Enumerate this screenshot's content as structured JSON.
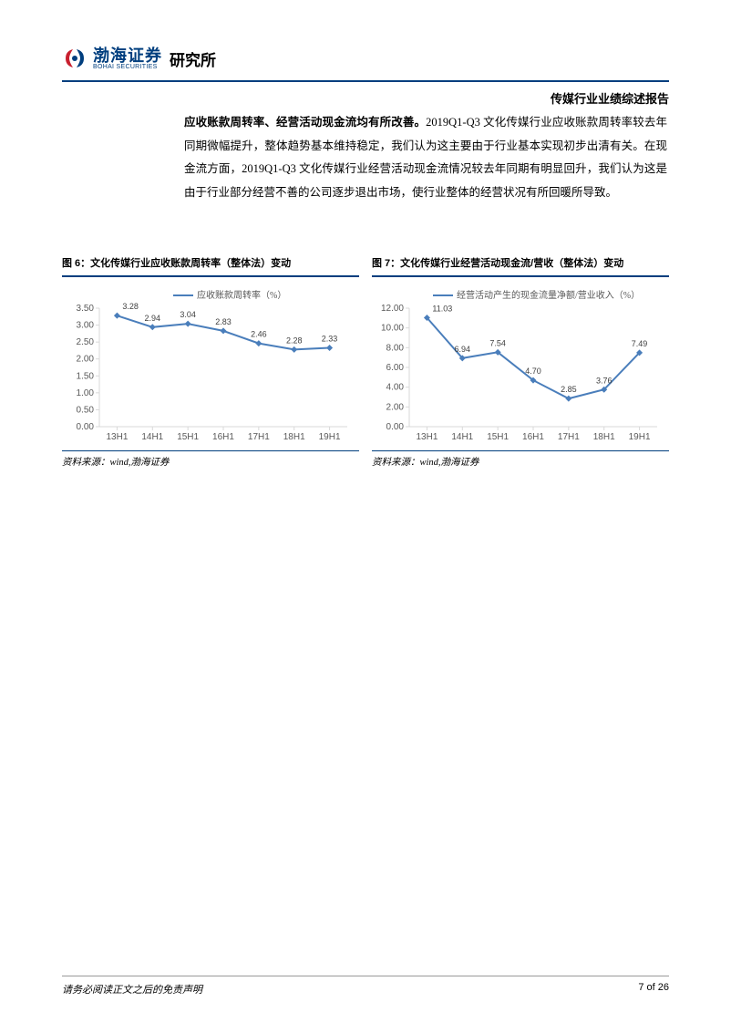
{
  "header": {
    "logo_cn": "渤海证券",
    "logo_en": "BOHAI SECURITIES",
    "institute": "研究所",
    "logo_red": "#c8202f",
    "logo_blue": "#003e7e"
  },
  "report_title": "传媒行业业绩综述报告",
  "body": {
    "bold_lead": "应收账款周转率、经营活动现金流均有所改善。",
    "rest": "2019Q1-Q3 文化传媒行业应收账款周转率较去年同期微幅提升，整体趋势基本维持稳定，我们认为这主要由于行业基本实现初步出清有关。在现金流方面，2019Q1-Q3 文化传媒行业经营活动现金流情况较去年同期有明显回升，我们认为这是由于行业部分经营不善的公司逐步退出市场，使行业整体的经营状况有所回暖所导致。"
  },
  "chart6": {
    "title": "图 6：文化传媒行业应收账款周转率（整体法）变动",
    "type": "line",
    "legend": "应收账款周转率（%）",
    "categories": [
      "13H1",
      "14H1",
      "15H1",
      "16H1",
      "17H1",
      "18H1",
      "19H1"
    ],
    "values": [
      3.28,
      2.94,
      3.04,
      2.83,
      2.46,
      2.28,
      2.33
    ],
    "ylim": [
      0.0,
      3.5
    ],
    "ytick_step": 0.5,
    "yticks": [
      "0.00",
      "0.50",
      "1.00",
      "1.50",
      "2.00",
      "2.50",
      "3.00",
      "3.50"
    ],
    "line_color": "#4a7ebb",
    "axis_color": "#d9d9d9",
    "text_color": "#595959",
    "marker": "diamond",
    "source": "资料来源：wind,渤海证券"
  },
  "chart7": {
    "title": "图 7：文化传媒行业经营活动现金流/营收（整体法）变动",
    "type": "line",
    "legend": "经营活动产生的现金流量净额/营业收入（%）",
    "categories": [
      "13H1",
      "14H1",
      "15H1",
      "16H1",
      "17H1",
      "18H1",
      "19H1"
    ],
    "values": [
      11.03,
      6.94,
      7.54,
      4.7,
      2.85,
      3.76,
      7.49
    ],
    "ylim": [
      0.0,
      12.0
    ],
    "ytick_step": 2.0,
    "yticks": [
      "0.00",
      "2.00",
      "4.00",
      "6.00",
      "8.00",
      "10.00",
      "12.00"
    ],
    "line_color": "#4a7ebb",
    "axis_color": "#d9d9d9",
    "text_color": "#595959",
    "marker": "diamond",
    "source": "资料来源：wind,渤海证券"
  },
  "footer": {
    "disclaimer": "请务必阅读正文之后的免责声明",
    "page": "7 of 26"
  }
}
